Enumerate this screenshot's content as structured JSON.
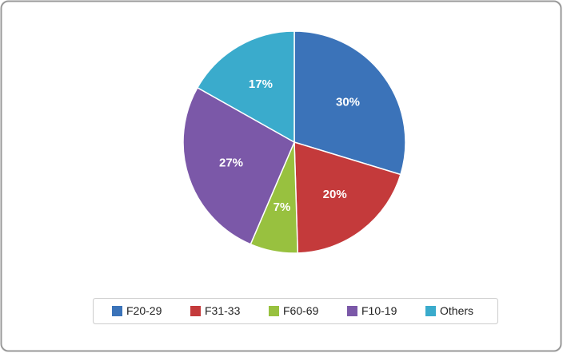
{
  "chart_data": {
    "type": "pie",
    "categories": [
      "F20-29",
      "F31-33",
      "F60-69",
      "F10-19",
      "Others"
    ],
    "values": [
      30,
      20,
      7,
      27,
      17
    ],
    "value_labels": [
      "30%",
      "20%",
      "7%",
      "27%",
      "17%"
    ],
    "colors": [
      "#3b73b9",
      "#c43a3b",
      "#98c13f",
      "#7b58a8",
      "#3aabcc"
    ],
    "legend": "bottom"
  }
}
